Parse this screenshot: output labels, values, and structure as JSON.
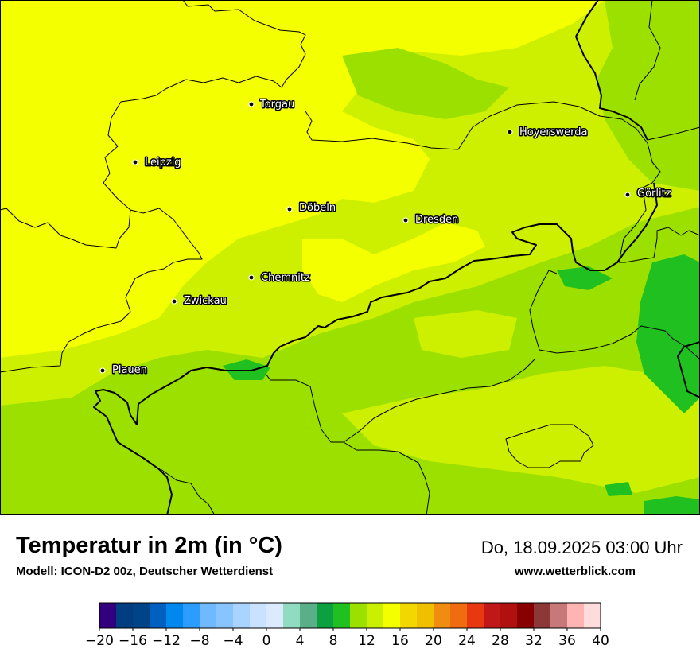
{
  "map": {
    "cities": [
      {
        "name": "Torgau"
      },
      {
        "name": "Hoyerswerda"
      },
      {
        "name": "Leipzig"
      },
      {
        "name": "Görlitz"
      },
      {
        "name": "Döbeln"
      },
      {
        "name": "Dresden"
      },
      {
        "name": "Chemnitz"
      },
      {
        "name": "Zwickau"
      },
      {
        "name": "Plauen"
      }
    ]
  },
  "header": {
    "title": "Temperatur in 2m (in °C)",
    "model": "Modell: ICON-D2 00z, Deutscher Wetterdienst",
    "datetime": "Do, 18.09.2025 03:00 Uhr",
    "website": "www.wetterblick.com"
  },
  "legend": {
    "colors": [
      "#32007f",
      "#003e7f",
      "#004487",
      "#0060c0",
      "#0088ee",
      "#2c9cff",
      "#70b8ff",
      "#88c4ff",
      "#a8d4ff",
      "#c8e2ff",
      "#dceaff",
      "#90dcc0",
      "#5aae88",
      "#0ca040",
      "#20c020",
      "#9ce000",
      "#c8f000",
      "#f4ff00",
      "#f2d800",
      "#f0c000",
      "#f08c10",
      "#f06c10",
      "#e83810",
      "#c01818",
      "#b01010",
      "#880000",
      "#8c3838",
      "#c87878",
      "#ffb4b4",
      "#ffdcdc"
    ],
    "ticks": [
      "−20",
      "−16",
      "−12",
      "−8",
      "−4",
      "0",
      "4",
      "8",
      "12",
      "16",
      "20",
      "24",
      "28",
      "32",
      "36",
      "40"
    ]
  }
}
